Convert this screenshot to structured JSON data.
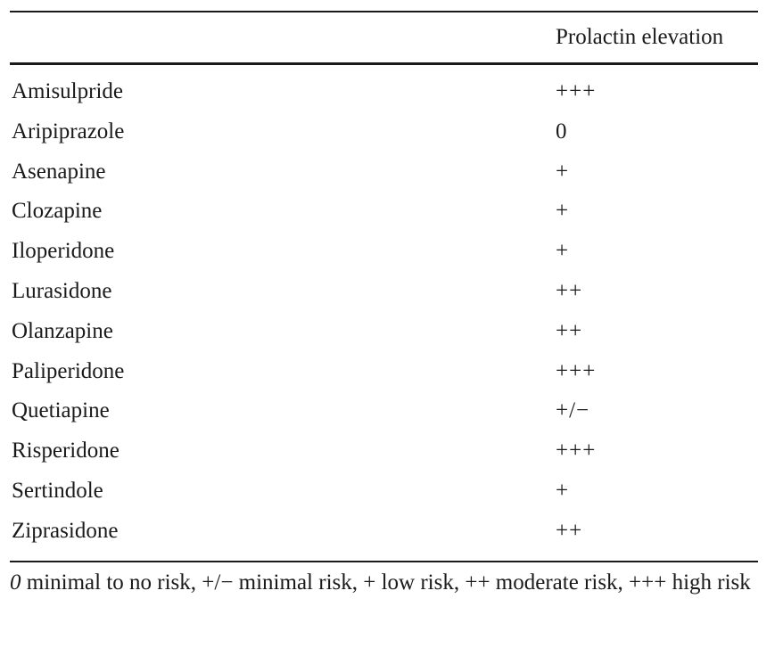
{
  "table": {
    "column_header": "Prolactin elevation",
    "rows": [
      {
        "drug": "Amisulpride",
        "risk": "+++"
      },
      {
        "drug": "Aripiprazole",
        "risk": "0"
      },
      {
        "drug": "Asenapine",
        "risk": "+"
      },
      {
        "drug": "Clozapine",
        "risk": "+"
      },
      {
        "drug": "Iloperidone",
        "risk": "+"
      },
      {
        "drug": "Lurasidone",
        "risk": "++"
      },
      {
        "drug": "Olanzapine",
        "risk": "++"
      },
      {
        "drug": "Paliperidone",
        "risk": "+++"
      },
      {
        "drug": "Quetiapine",
        "risk": "+/−"
      },
      {
        "drug": "Risperidone",
        "risk": "+++"
      },
      {
        "drug": "Sertindole",
        "risk": "+"
      },
      {
        "drug": "Ziprasidone",
        "risk": "++"
      }
    ]
  },
  "footnote": {
    "zero_symbol": "0",
    "text": " minimal to no risk, +/− minimal risk, + low risk, ++ moderate risk, +++ high risk"
  }
}
